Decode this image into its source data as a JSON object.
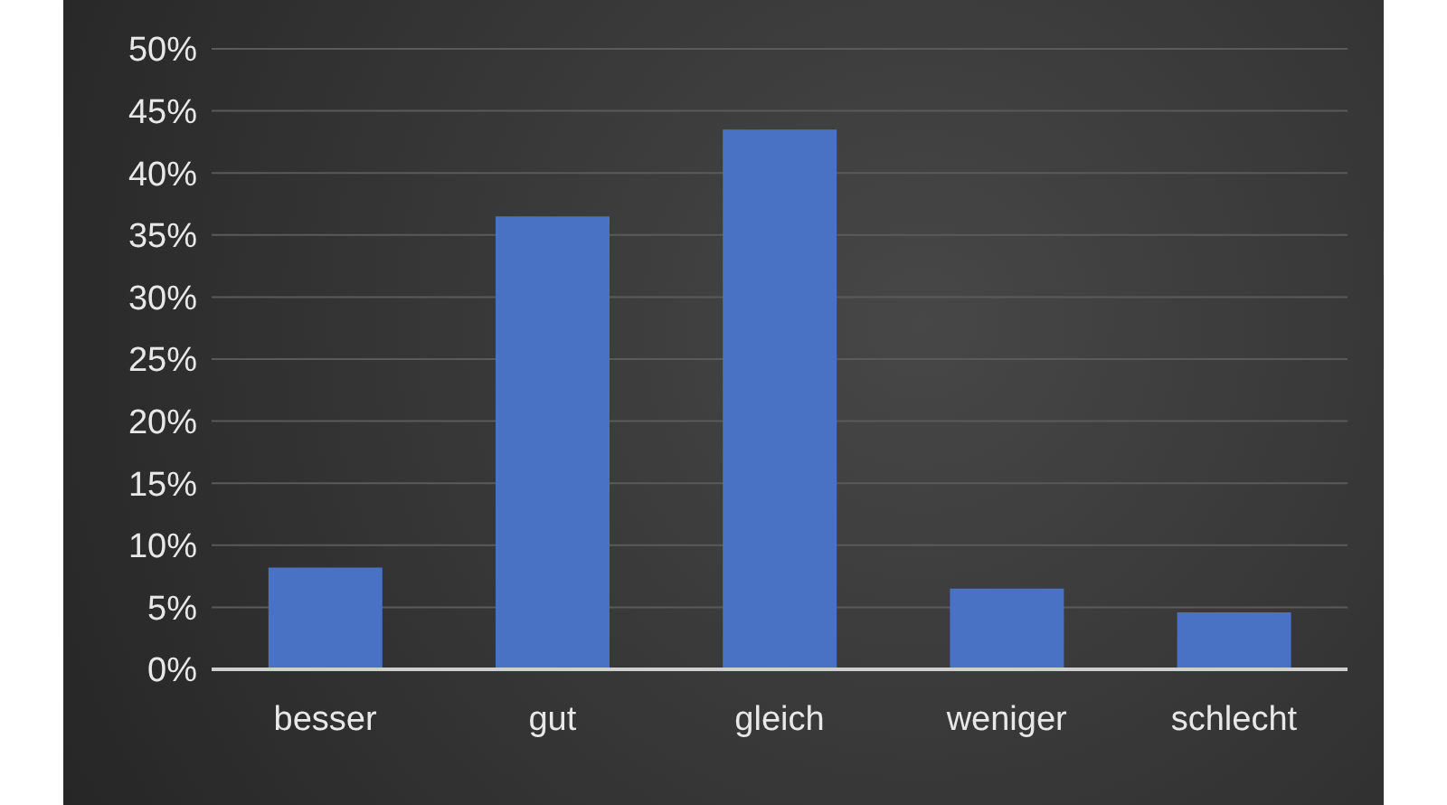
{
  "chart_data": {
    "type": "bar",
    "categories": [
      "besser",
      "gut",
      "gleich",
      "weniger",
      "schlecht"
    ],
    "values": [
      8.2,
      36.5,
      43.5,
      6.5,
      4.6
    ],
    "color": "#4a72c4",
    "ylim": [
      0,
      50
    ],
    "yticks": [
      {
        "value": 0,
        "label": "0%"
      },
      {
        "value": 5,
        "label": "5%"
      },
      {
        "value": 10,
        "label": "10%"
      },
      {
        "value": 15,
        "label": "15%"
      },
      {
        "value": 20,
        "label": "20%"
      },
      {
        "value": 25,
        "label": "25%"
      },
      {
        "value": 30,
        "label": "30%"
      },
      {
        "value": 35,
        "label": "35%"
      },
      {
        "value": 40,
        "label": "40%"
      },
      {
        "value": 45,
        "label": "45%"
      },
      {
        "value": 50,
        "label": "50%"
      }
    ],
    "grid": "y"
  }
}
